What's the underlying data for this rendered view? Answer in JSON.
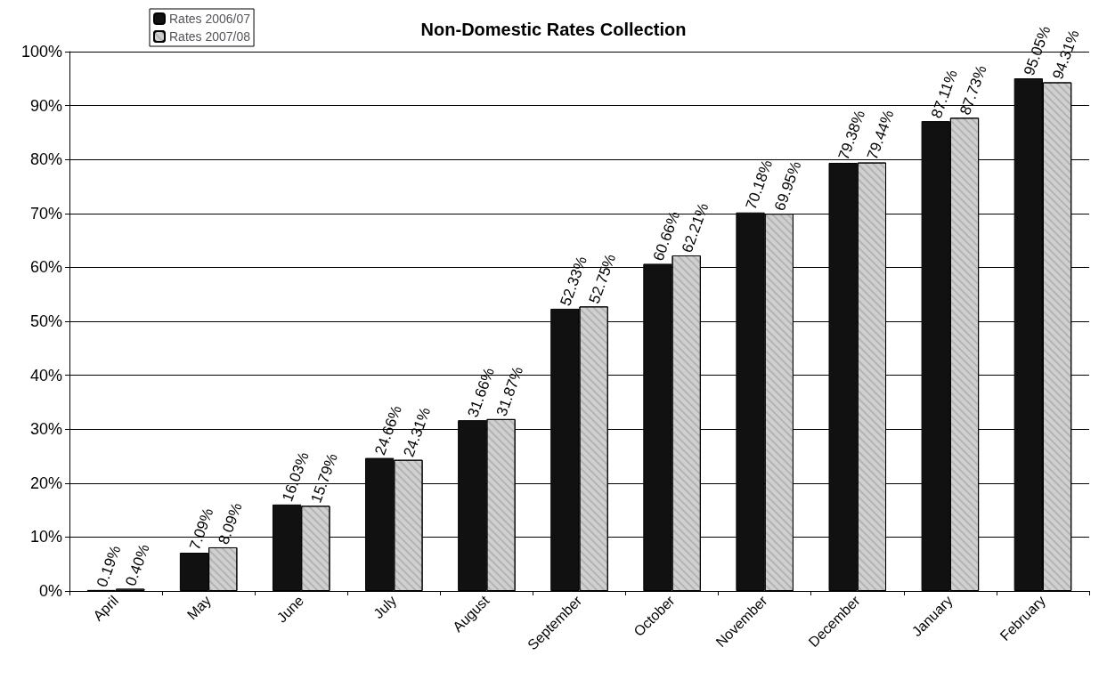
{
  "chart_data": {
    "type": "bar",
    "title": "Non-Domestic Rates Collection",
    "categories": [
      "April",
      "May",
      "June",
      "July",
      "August",
      "September",
      "October",
      "November",
      "December",
      "January",
      "February"
    ],
    "series": [
      {
        "name": "Rates 2006/07",
        "color": "#111111",
        "values": [
          0.19,
          7.09,
          16.03,
          24.66,
          31.66,
          52.33,
          60.66,
          70.18,
          79.38,
          87.11,
          95.05
        ],
        "value_labels": [
          "0.19%",
          "7.09%",
          "16.03%",
          "24.66%",
          "31.66%",
          "52.33%",
          "60.66%",
          "70.18%",
          "79.38%",
          "87.11%",
          "95.05%"
        ]
      },
      {
        "name": "Rates 2007/08",
        "color": "#d0d0d0",
        "values": [
          0.4,
          8.09,
          15.79,
          24.31,
          31.87,
          52.75,
          62.21,
          69.95,
          79.44,
          87.73,
          94.31
        ],
        "value_labels": [
          "0.40%",
          "8.09%",
          "15.79%",
          "24.31%",
          "31.87%",
          "52.75%",
          "62.21%",
          "69.95%",
          "79.44%",
          "87.73%",
          "94.31%"
        ]
      }
    ],
    "ylim": [
      0,
      100
    ],
    "yticks": [
      {
        "value": 0,
        "label": "0%"
      },
      {
        "value": 10,
        "label": "10%"
      },
      {
        "value": 20,
        "label": "20%"
      },
      {
        "value": 30,
        "label": "30%"
      },
      {
        "value": 40,
        "label": "40%"
      },
      {
        "value": 50,
        "label": "50%"
      },
      {
        "value": 60,
        "label": "60%"
      },
      {
        "value": 70,
        "label": "70%"
      },
      {
        "value": 80,
        "label": "80%"
      },
      {
        "value": 90,
        "label": "90%"
      },
      {
        "value": 100,
        "label": "100%"
      }
    ],
    "grid": "y",
    "legend": "top left"
  }
}
